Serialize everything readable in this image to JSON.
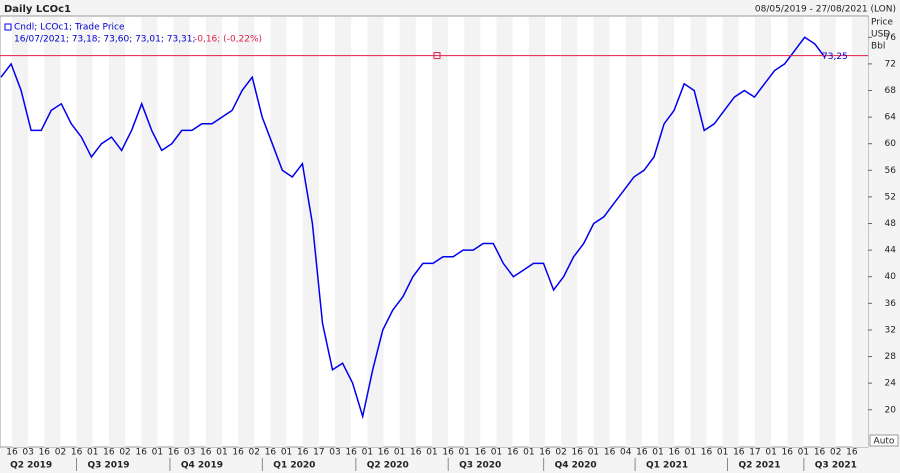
{
  "chart_data": {
    "type": "line",
    "title": "Daily LCOc1",
    "date_range": "08/05/2019 - 27/08/2021 (LON)",
    "legend_name": "Cndl; LCOc1; Trade Price",
    "legend_values": "16/07/2021; 73,18; 73,60; 73,01; 73,31;",
    "legend_change": "-0,16; (-0,22%)",
    "axis_label": [
      "Price",
      "USD",
      "Bbl"
    ],
    "auto_label": "Auto",
    "color": "#0000ee",
    "last_price": {
      "value": 73.25,
      "label": "73,25"
    },
    "last_price_color": "#e0204a",
    "values": [
      70,
      72,
      68,
      62,
      62,
      65,
      66,
      63,
      61,
      58,
      60,
      61,
      59,
      62,
      66,
      62,
      59,
      60,
      62,
      62,
      63,
      63,
      64,
      65,
      68,
      70,
      64,
      60,
      56,
      55,
      57,
      48,
      33,
      26,
      27,
      24,
      19,
      26,
      32,
      35,
      37,
      40,
      42,
      42,
      43,
      43,
      44,
      44,
      45,
      45,
      42,
      40,
      41,
      42,
      42,
      38,
      40,
      43,
      45,
      48,
      49,
      51,
      53,
      55,
      56,
      58,
      63,
      65,
      69,
      68,
      62,
      63,
      65,
      67,
      68,
      67,
      69,
      71,
      72,
      74,
      76,
      75,
      73
    ],
    "xlim": [
      -0.1,
      86.3
    ],
    "ylim": [
      14.4,
      79.2
    ],
    "yticks": [
      20,
      24,
      28,
      32,
      36,
      40,
      44,
      48,
      52,
      56,
      60,
      64,
      68,
      72,
      76
    ],
    "xticks": [
      {
        "value": 3.0,
        "label": "Q2 2019"
      },
      {
        "value": 10.7,
        "label": "Q3 2019"
      },
      {
        "value": 20.0,
        "label": "Q4 2019"
      },
      {
        "value": 29.2,
        "label": "Q1 2020"
      },
      {
        "value": 38.5,
        "label": "Q2 2020"
      },
      {
        "value": 47.7,
        "label": "Q3 2020"
      },
      {
        "value": 57.2,
        "label": "Q4 2020"
      },
      {
        "value": 66.3,
        "label": "Q1 2021"
      },
      {
        "value": 75.5,
        "label": "Q2 2021"
      },
      {
        "value": 83.1,
        "label": "Q3 2021"
      }
    ],
    "day_labels": [
      "16",
      "03",
      "16",
      "02",
      "16",
      "01",
      "16",
      "02",
      "16",
      "01",
      "16",
      "03",
      "16",
      "01",
      "16",
      "02",
      "16",
      "01",
      "16",
      "17",
      "03",
      "16",
      "01",
      "16",
      "01",
      "16",
      "01",
      "16",
      "01",
      "16",
      "01",
      "16",
      "01",
      "16",
      "02",
      "16",
      "01",
      "16",
      "04",
      "16",
      "01",
      "16",
      "01",
      "16",
      "01",
      "16",
      "17",
      "01",
      "16",
      "01",
      "16",
      "02",
      "16"
    ],
    "grid": true
  }
}
